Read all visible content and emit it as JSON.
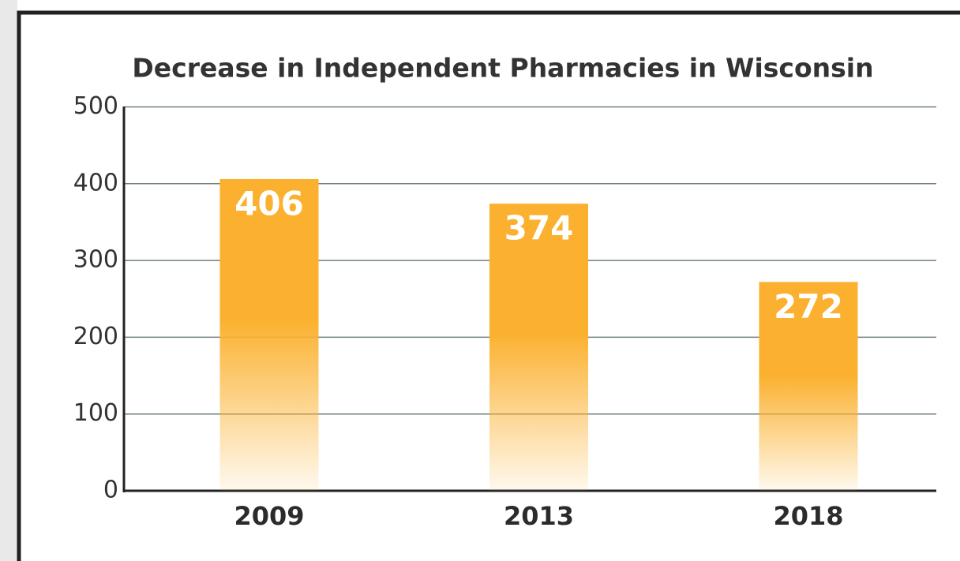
{
  "chart_data": {
    "type": "bar",
    "title": "Decrease in Independent Pharmacies in Wisconsin",
    "categories": [
      "2009",
      "2013",
      "2018"
    ],
    "values": [
      406,
      374,
      272
    ],
    "color": "#fbb12f",
    "ylim": [
      0,
      500
    ],
    "yticks": [
      0,
      100,
      200,
      300,
      400,
      500
    ],
    "grid": true
  }
}
